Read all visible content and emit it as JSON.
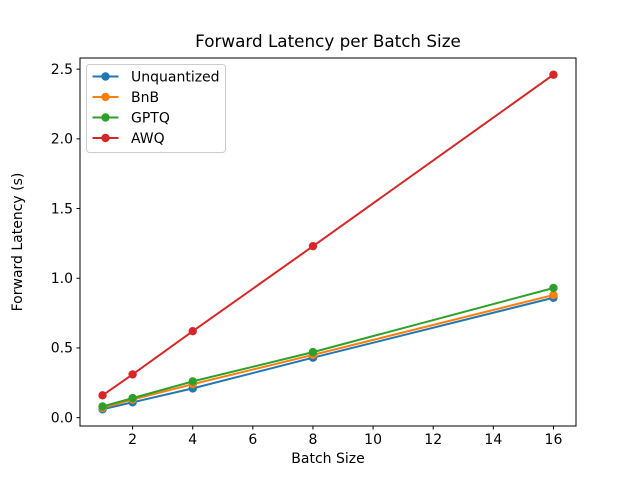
{
  "chart_data": {
    "type": "line",
    "title": "Forward Latency per Batch Size",
    "xlabel": "Batch Size",
    "ylabel": "Forward Latency (s)",
    "x": [
      1,
      2,
      4,
      8,
      16
    ],
    "series": [
      {
        "name": "Unquantized",
        "color": "#1f77b4",
        "values": [
          0.06,
          0.11,
          0.21,
          0.43,
          0.86
        ]
      },
      {
        "name": "BnB",
        "color": "#ff7f0e",
        "values": [
          0.07,
          0.13,
          0.24,
          0.45,
          0.88
        ]
      },
      {
        "name": "GPTQ",
        "color": "#2ca02c",
        "values": [
          0.08,
          0.14,
          0.26,
          0.47,
          0.93
        ]
      },
      {
        "name": "AWQ",
        "color": "#d62728",
        "values": [
          0.16,
          0.31,
          0.62,
          1.23,
          2.46
        ]
      }
    ],
    "xticks": {
      "values": [
        2,
        4,
        6,
        8,
        10,
        12,
        14,
        16
      ],
      "labels": [
        "2",
        "4",
        "6",
        "8",
        "10",
        "12",
        "14",
        "16"
      ]
    },
    "yticks": {
      "values": [
        0,
        0.5,
        1,
        1.5,
        2,
        2.5
      ],
      "labels": [
        "0.0",
        "0.5",
        "1.0",
        "1.5",
        "2.0",
        "2.5"
      ]
    },
    "xlim": [
      0.25,
      16.75
    ],
    "ylim": [
      -0.06,
      2.58
    ],
    "grid": false,
    "marker": "circle",
    "legend": {
      "position": "upper-left",
      "entries": [
        "Unquantized",
        "BnB",
        "GPTQ",
        "AWQ"
      ],
      "border_color": "#cccccc",
      "background": "#ffffff"
    },
    "spine_color": "#000000",
    "text_color": "#000000"
  }
}
